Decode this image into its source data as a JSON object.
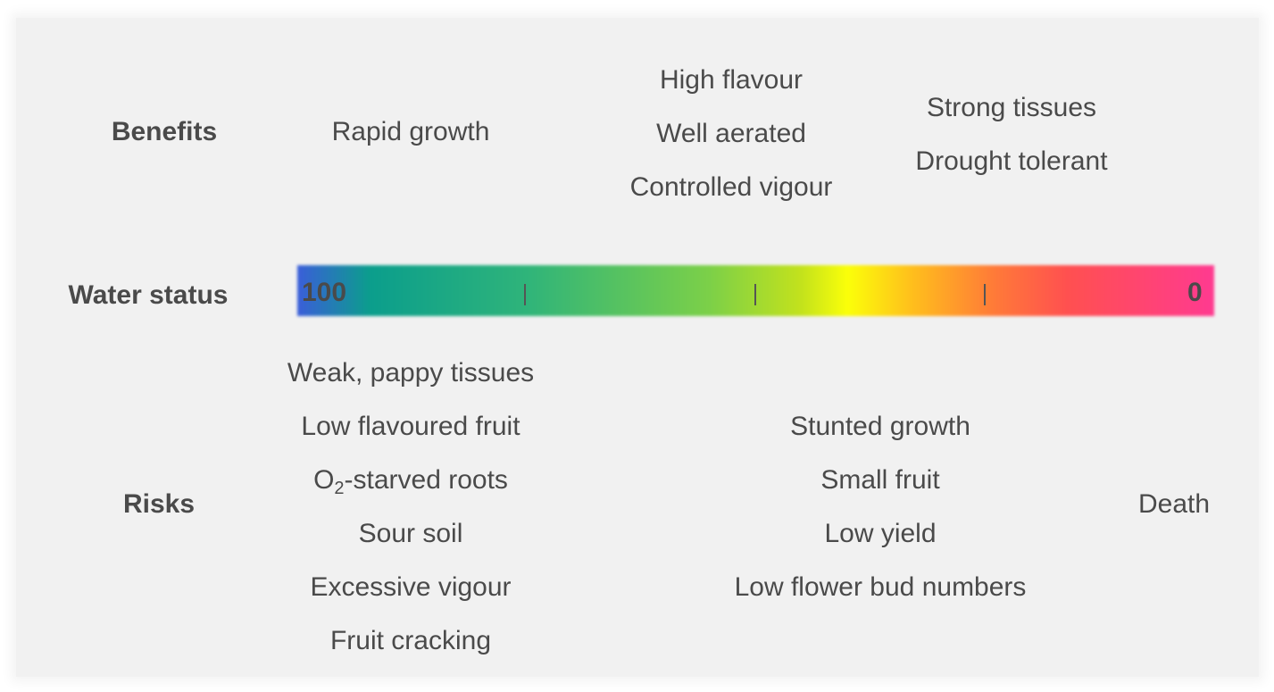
{
  "benefits": {
    "heading": "Benefits",
    "col1": [
      "Rapid growth"
    ],
    "col2": [
      "High flavour",
      "Well aerated",
      "Controlled vigour"
    ],
    "col3": [
      "Strong tissues",
      "Drought tolerant"
    ]
  },
  "water_status": {
    "heading": "Water status",
    "left_label": "100",
    "right_label": "0",
    "tick_count": 3,
    "gradient_colors": [
      "#3a5ed9",
      "#0b9e8c",
      "#2fb47a",
      "#7cd048",
      "#fbff09",
      "#ff7a38",
      "#ff3a90"
    ]
  },
  "risks": {
    "heading": "Risks",
    "col1": [
      "Weak, pappy tissues",
      "Low flavoured  fruit",
      "-starved roots",
      "Sour soil",
      "Excessive vigour",
      "Fruit cracking"
    ],
    "o2": {
      "base": "O",
      "sub": "2"
    },
    "col2": [
      "Stunted growth",
      "Small fruit",
      "Low yield",
      "Low flower bud numbers"
    ],
    "col3": [
      "Death"
    ]
  }
}
